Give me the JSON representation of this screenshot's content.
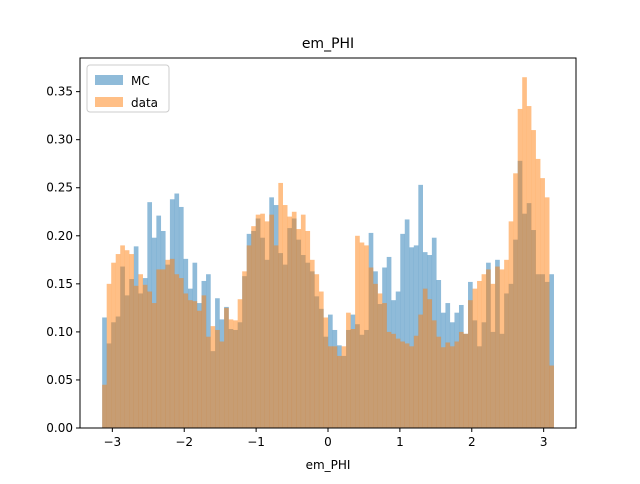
{
  "chart_data": {
    "type": "bar",
    "title": "em_PHI",
    "xlabel": "em_PHI",
    "ylabel": "",
    "xlim": [
      -3.45,
      3.45
    ],
    "ylim": [
      0,
      0.385
    ],
    "x_ticks": [
      -3,
      -2,
      -1,
      0,
      1,
      2,
      3
    ],
    "x_tick_labels": [
      "−3",
      "−2",
      "−1",
      "0",
      "1",
      "2",
      "3"
    ],
    "y_ticks": [
      0,
      0.05,
      0.1,
      0.15,
      0.2,
      0.25,
      0.3,
      0.35
    ],
    "y_tick_labels": [
      "0.00",
      "0.05",
      "0.10",
      "0.15",
      "0.20",
      "0.25",
      "0.30",
      "0.35"
    ],
    "legend_position": "top-left",
    "bins": {
      "count": 100,
      "range": [
        -3.1416,
        3.1416
      ]
    },
    "series": [
      {
        "name": "MC",
        "color": "#1f77b4",
        "opacity": 0.5,
        "values": [
          0.115,
          0.088,
          0.11,
          0.116,
          0.168,
          0.138,
          0.155,
          0.189,
          0.14,
          0.156,
          0.235,
          0.198,
          0.221,
          0.205,
          0.17,
          0.238,
          0.244,
          0.23,
          0.176,
          0.145,
          0.172,
          0.13,
          0.153,
          0.16,
          0.08,
          0.135,
          0.113,
          0.126,
          0.103,
          0.102,
          0.11,
          0.158,
          0.202,
          0.205,
          0.218,
          0.198,
          0.175,
          0.24,
          0.232,
          0.182,
          0.17,
          0.208,
          0.218,
          0.196,
          0.18,
          0.172,
          0.163,
          0.137,
          0.124,
          0.095,
          0.118,
          0.102,
          0.086,
          0.075,
          0.102,
          0.118,
          0.108,
          0.097,
          0.102,
          0.203,
          0.163,
          0.129,
          0.167,
          0.178,
          0.133,
          0.142,
          0.202,
          0.217,
          0.188,
          0.19,
          0.253,
          0.183,
          0.18,
          0.198,
          0.154,
          0.12,
          0.13,
          0.11,
          0.12,
          0.128,
          0.098,
          0.152,
          0.112,
          0.085,
          0.11,
          0.172,
          0.1,
          0.175,
          0.098,
          0.14,
          0.15,
          0.196,
          0.278,
          0.223,
          0.234,
          0.206,
          0.16,
          0.16,
          0.152,
          0.16
        ]
      },
      {
        "name": "data",
        "color": "#ff7f0e",
        "opacity": 0.5,
        "values": [
          0.045,
          0.15,
          0.172,
          0.181,
          0.19,
          0.185,
          0.181,
          0.148,
          0.16,
          0.149,
          0.142,
          0.13,
          0.165,
          0.165,
          0.175,
          0.176,
          0.16,
          0.156,
          0.14,
          0.133,
          0.132,
          0.122,
          0.138,
          0.095,
          0.106,
          0.102,
          0.09,
          0.125,
          0.113,
          0.112,
          0.134,
          0.163,
          0.19,
          0.21,
          0.222,
          0.223,
          0.215,
          0.222,
          0.19,
          0.255,
          0.232,
          0.22,
          0.225,
          0.207,
          0.222,
          0.205,
          0.175,
          0.16,
          0.142,
          0.115,
          0.085,
          0.085,
          0.075,
          0.085,
          0.12,
          0.103,
          0.2,
          0.193,
          0.19,
          0.167,
          0.15,
          0.14,
          0.13,
          0.1,
          0.098,
          0.093,
          0.09,
          0.088,
          0.085,
          0.096,
          0.118,
          0.145,
          0.134,
          0.112,
          0.095,
          0.084,
          0.089,
          0.085,
          0.09,
          0.1,
          0.098,
          0.133,
          0.145,
          0.153,
          0.16,
          0.165,
          0.15,
          0.168,
          0.165,
          0.175,
          0.215,
          0.265,
          0.332,
          0.365,
          0.335,
          0.31,
          0.28,
          0.26,
          0.24,
          0.065
        ]
      }
    ]
  }
}
